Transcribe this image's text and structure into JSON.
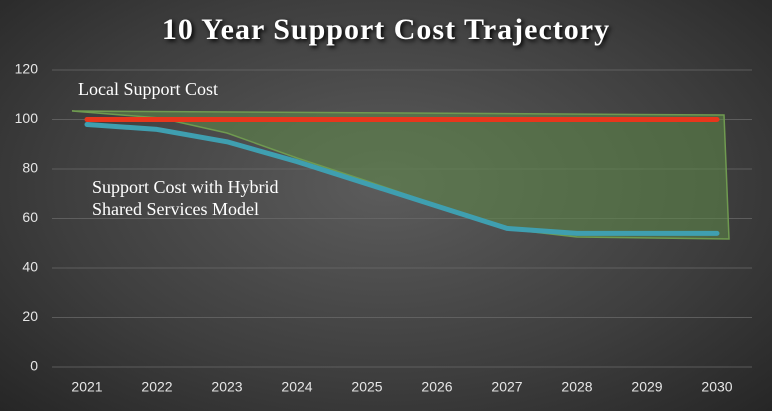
{
  "chart_data": {
    "type": "line",
    "title": "10 Year Support Cost Trajectory",
    "categories": [
      "2021",
      "2022",
      "2023",
      "2024",
      "2025",
      "2026",
      "2027",
      "2028",
      "2029",
      "2030"
    ],
    "series": [
      {
        "name": "Local Support Cost",
        "color": "#e8361c",
        "values": [
          100,
          100,
          100,
          100,
          100,
          100,
          100,
          100,
          100,
          100
        ]
      },
      {
        "name": "Support Cost with Hybrid Shared Services Model",
        "color": "#3f9fb0",
        "values": [
          98,
          96,
          91,
          83,
          74,
          65,
          56,
          54,
          54,
          54
        ]
      }
    ],
    "ylim": [
      0,
      120
    ],
    "yticks": [
      0,
      20,
      40,
      60,
      80,
      100,
      120
    ],
    "grid": true
  }
}
